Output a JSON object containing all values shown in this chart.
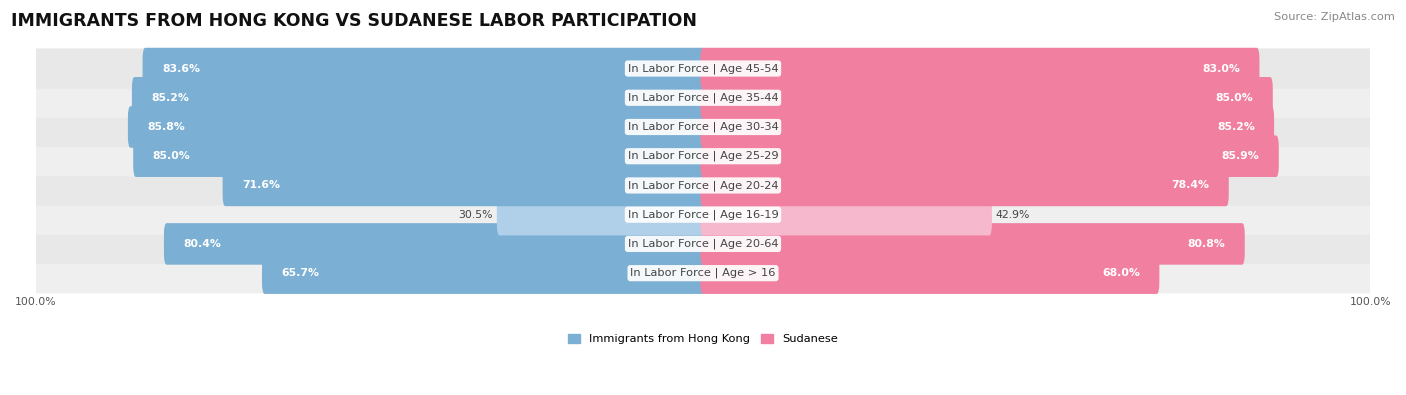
{
  "title": "IMMIGRANTS FROM HONG KONG VS SUDANESE LABOR PARTICIPATION",
  "source": "Source: ZipAtlas.com",
  "categories": [
    "In Labor Force | Age > 16",
    "In Labor Force | Age 20-64",
    "In Labor Force | Age 16-19",
    "In Labor Force | Age 20-24",
    "In Labor Force | Age 25-29",
    "In Labor Force | Age 30-34",
    "In Labor Force | Age 35-44",
    "In Labor Force | Age 45-54"
  ],
  "hk_values": [
    65.7,
    80.4,
    30.5,
    71.6,
    85.0,
    85.8,
    85.2,
    83.6
  ],
  "sud_values": [
    68.0,
    80.8,
    42.9,
    78.4,
    85.9,
    85.2,
    85.0,
    83.0
  ],
  "hk_color": "#7bafd4",
  "hk_color_light": "#b0cfe8",
  "sud_color": "#f07fa0",
  "sud_color_light": "#f5b8cc",
  "bar_height": 0.62,
  "max_val": 100.0,
  "legend_hk": "Immigrants from Hong Kong",
  "legend_sud": "Sudanese",
  "title_fontsize": 12.5,
  "label_fontsize": 8.2,
  "value_fontsize": 7.8,
  "source_fontsize": 8.2,
  "row_colors": [
    "#efefef",
    "#e8e8e8"
  ]
}
